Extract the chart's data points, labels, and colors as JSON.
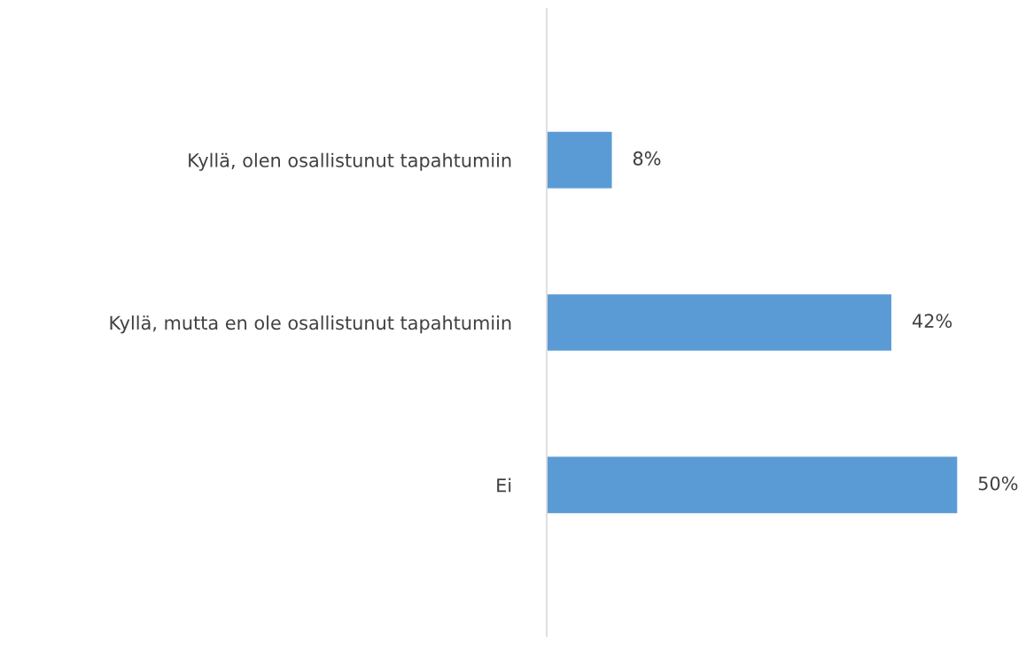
{
  "chart_data": {
    "type": "bar",
    "orientation": "horizontal",
    "categories": [
      "Kyllä, olen osallistunut tapahtumiin",
      "Kyllä, mutta en ole osallistunut tapahtumiin",
      "Ei"
    ],
    "values": [
      8,
      42,
      50
    ],
    "value_labels": [
      "8%",
      "42%",
      "50%"
    ],
    "color": "#5b9bd5",
    "tick_labels": "y",
    "grid": false,
    "legend": false
  }
}
